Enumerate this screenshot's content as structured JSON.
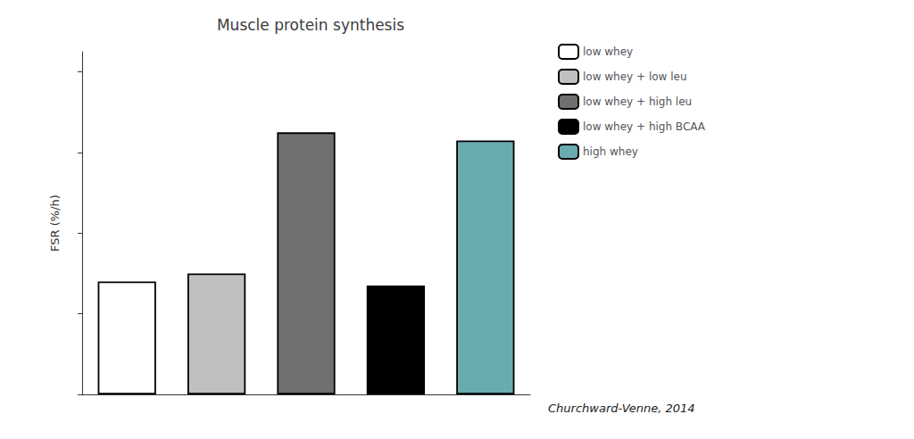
{
  "chart_data": {
    "type": "bar",
    "title": "Muscle protein synthesis",
    "ylabel": "FSR (%/h)",
    "categories": [
      "low whey",
      "low whey + low leu",
      "low whey + high leu",
      "low whey + high BCAA",
      "high whey"
    ],
    "values": [
      0.28,
      0.3,
      0.65,
      0.27,
      0.63
    ],
    "colors": [
      "#ffffff",
      "#c0c0c0",
      "#707070",
      "#000000",
      "#6aabb0"
    ],
    "ylim": [
      0,
      0.85
    ],
    "yticks": [
      0.0,
      0.2,
      0.4,
      0.6,
      0.8
    ],
    "tick_labels": false,
    "grid": false,
    "legend": "right",
    "annotations": [
      "Churchward-Venne, 2014"
    ]
  }
}
